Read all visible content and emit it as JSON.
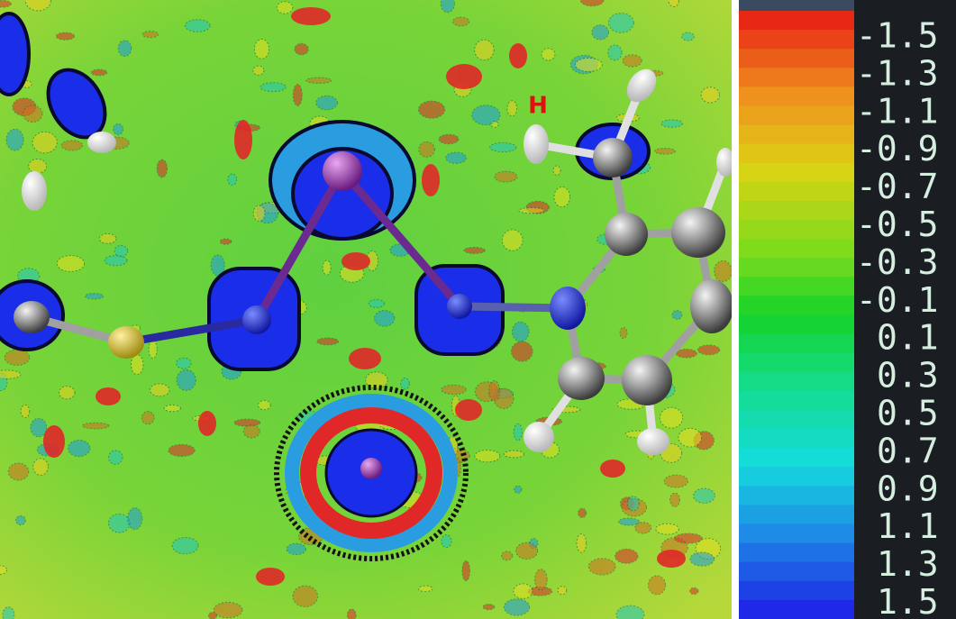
{
  "map": {
    "atom_label": "H"
  },
  "colorbar": {
    "labels": [
      "-1.5",
      "-1.3",
      "-1.1",
      "-0.9",
      "-0.7",
      "-0.5",
      "-0.3",
      "-0.1",
      "0.1",
      "0.3",
      "0.5",
      "0.7",
      "0.9",
      "1.1",
      "1.3",
      "1.5"
    ]
  }
}
